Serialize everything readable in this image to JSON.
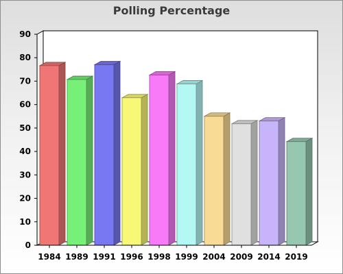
{
  "chart_data": {
    "type": "bar",
    "title": "Polling Percentage",
    "xlabel": "",
    "ylabel": "",
    "categories": [
      "1984",
      "1989",
      "1991",
      "1996",
      "1998",
      "1999",
      "2004",
      "2009",
      "2014",
      "2019"
    ],
    "values": [
      76.6,
      70.7,
      77.0,
      62.9,
      72.6,
      68.8,
      55.0,
      51.8,
      53.0,
      44.2
    ],
    "colors": [
      "#f07676",
      "#76f076",
      "#7878f2",
      "#f8f878",
      "#f87af8",
      "#b4f8f4",
      "#f8dc96",
      "#e0e0e0",
      "#c8b4f8",
      "#96c8b0"
    ],
    "ylim": [
      0,
      90
    ],
    "yticks": [
      0,
      10,
      20,
      30,
      40,
      50,
      60,
      70,
      80,
      90
    ],
    "grid": false,
    "legend": "none",
    "style": "3d"
  }
}
